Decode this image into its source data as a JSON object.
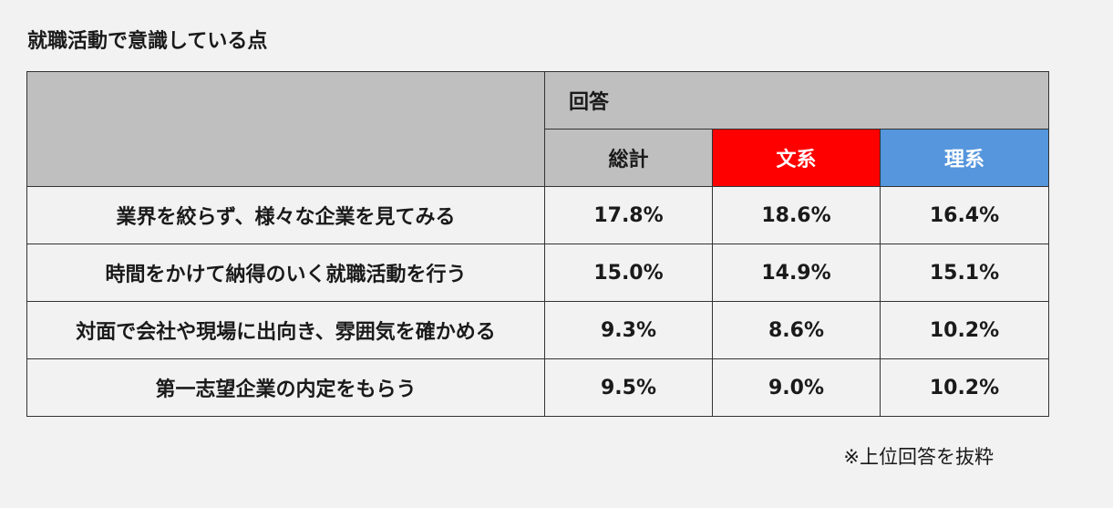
{
  "title": "就職活動で意識している点",
  "footnote": "※上位回答を抜粋",
  "colors": {
    "header_gray": "#bfbfbf",
    "bunkei": "#ff0000",
    "rikei": "#5596dc",
    "background": "#f2f2f2"
  },
  "chart_data": {
    "type": "table",
    "group_header": "回答",
    "columns": [
      "総計",
      "文系",
      "理系"
    ],
    "rows": [
      {
        "label": "業界を絞らず、様々な企業を見てみる",
        "values": [
          "17.8%",
          "18.6%",
          "16.4%"
        ]
      },
      {
        "label": "時間をかけて納得のいく就職活動を行う",
        "values": [
          "15.0%",
          "14.9%",
          "15.1%"
        ]
      },
      {
        "label": "対面で会社や現場に出向き、雰囲気を確かめる",
        "values": [
          "9.3%",
          "8.6%",
          "10.2%"
        ]
      },
      {
        "label": "第一志望企業の内定をもらう",
        "values": [
          "9.5%",
          "9.0%",
          "10.2%"
        ]
      }
    ]
  }
}
